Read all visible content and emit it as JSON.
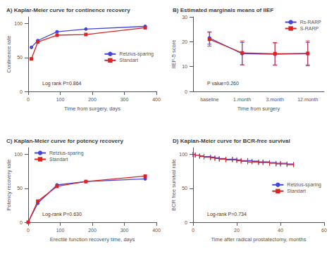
{
  "chart_data": [
    {
      "type": "line",
      "title": "A) Kaplar-Meier curve for continence recovery",
      "xlabel": "Time from surgery, days",
      "ylabel": "Continence rate",
      "x": [
        10,
        30,
        90,
        180,
        365
      ],
      "series": [
        {
          "name": "Retzius-sparing",
          "color": "#4444dd",
          "marker": "circle",
          "values": [
            65,
            75,
            88,
            92,
            96
          ]
        },
        {
          "name": "Standart",
          "color": "#dd2222",
          "marker": "square",
          "values": [
            48,
            73,
            83,
            84,
            94
          ]
        }
      ],
      "xlim": [
        0,
        400
      ],
      "ylim": [
        0,
        110
      ],
      "xticks": [
        0,
        100,
        200,
        300,
        400
      ],
      "yticks": [
        0,
        50,
        100
      ],
      "annotation": "Log rank P=0.864",
      "legend": "right",
      "grid": false
    },
    {
      "type": "line",
      "title": "B) Estimated marginals means of IIEF",
      "xlabel": "Time from surgery",
      "ylabel": "IIEF-5 score",
      "categories": [
        "baseline",
        "1.month",
        "3.month",
        "12.month"
      ],
      "series": [
        {
          "name": "Rs-RARP",
          "color": "#4444dd",
          "marker": "circle",
          "values": [
            21.5,
            15.2,
            15.0,
            15.2
          ],
          "errors": [
            2.5,
            4.5,
            4.5,
            4.5
          ]
        },
        {
          "name": "S-RARP",
          "color": "#dd2222",
          "marker": "square",
          "values": [
            21.0,
            15.5,
            15.2,
            15.3
          ],
          "errors": [
            2.8,
            4.8,
            4.5,
            5.0
          ]
        }
      ],
      "ylim": [
        0,
        30
      ],
      "yticks": [
        0,
        10,
        20,
        30
      ],
      "annotation": "P value=0.260",
      "legend": "upper right",
      "grid": false
    },
    {
      "type": "line",
      "title": "C) Kaplan-Meier curve for potency recovery",
      "xlabel": "Erectile function recovery time, days",
      "ylabel": "Potency recovery rate",
      "x": [
        0,
        30,
        90,
        180,
        365
      ],
      "series": [
        {
          "name": "Retzius-sparing",
          "color": "#4444dd",
          "marker": "circle",
          "values": [
            0,
            28,
            55,
            60,
            64
          ]
        },
        {
          "name": "Standart",
          "color": "#dd2222",
          "marker": "square",
          "values": [
            0,
            31,
            53,
            60,
            68
          ]
        }
      ],
      "xlim": [
        0,
        400
      ],
      "ylim": [
        0,
        110
      ],
      "xticks": [
        0,
        100,
        200,
        300,
        400
      ],
      "yticks": [
        0,
        50,
        100
      ],
      "annotation": "Log-rank P=0.630",
      "legend": "upper left",
      "grid": false
    },
    {
      "type": "line",
      "title": "D) Kaplan-Meier curve for BCR-free survival",
      "xlabel": "Time after radical prostatectomy, months",
      "ylabel": "BCR free survival rate",
      "x": [
        0,
        1,
        3,
        5,
        8,
        10,
        12,
        15,
        18,
        20,
        22,
        25,
        27,
        30,
        32,
        35,
        38,
        40,
        43,
        46
      ],
      "series": [
        {
          "name": "Retzius-sparing",
          "color": "#4444dd",
          "marker": "vline",
          "line_style": "step",
          "values": [
            100,
            99,
            98,
            97,
            96,
            95,
            94,
            93,
            93,
            92,
            91,
            91,
            90,
            89,
            89,
            88,
            87,
            87,
            86,
            85
          ]
        },
        {
          "name": "Standart",
          "color": "#dd2222",
          "marker": "vline",
          "line_style": "step",
          "values": [
            100,
            99,
            97,
            96,
            95,
            94,
            93,
            92,
            92,
            91,
            90,
            89,
            89,
            88,
            88,
            87,
            86,
            86,
            85,
            85
          ]
        }
      ],
      "xlim": [
        0,
        60
      ],
      "ylim": [
        0,
        110
      ],
      "xticks": [
        0,
        20,
        40,
        60
      ],
      "yticks": [
        0,
        50,
        100
      ],
      "annotation": "Log-rank P=0.734",
      "legend": "right",
      "grid": false
    }
  ]
}
